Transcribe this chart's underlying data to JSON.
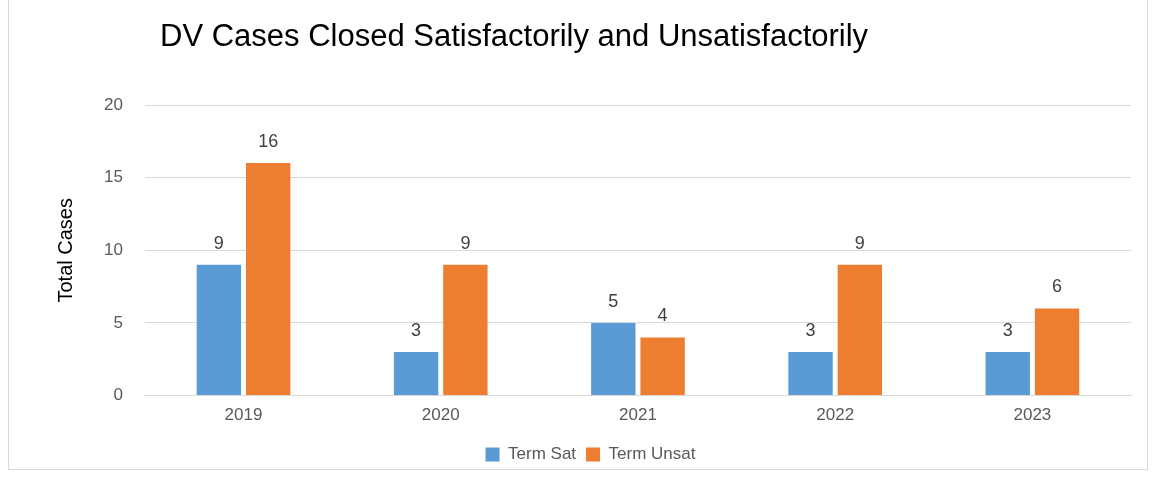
{
  "chart_data": {
    "type": "bar",
    "title": "DV Cases Closed Satisfactorily and Unsatisfactorily",
    "ylabel": "Total Cases",
    "categories": [
      "2019",
      "2020",
      "2021",
      "2022",
      "2023"
    ],
    "series": [
      {
        "name": "Term Sat",
        "color": "#5b9bd5",
        "values": [
          9,
          3,
          5,
          3,
          3
        ]
      },
      {
        "name": "Term Unsat",
        "color": "#ed7d31",
        "values": [
          16,
          9,
          4,
          9,
          6
        ]
      }
    ],
    "ylim": [
      0,
      20
    ],
    "yticks": [
      0,
      5,
      10,
      15,
      20
    ],
    "grid": "y",
    "legend": "bottom",
    "data_labels": true
  }
}
